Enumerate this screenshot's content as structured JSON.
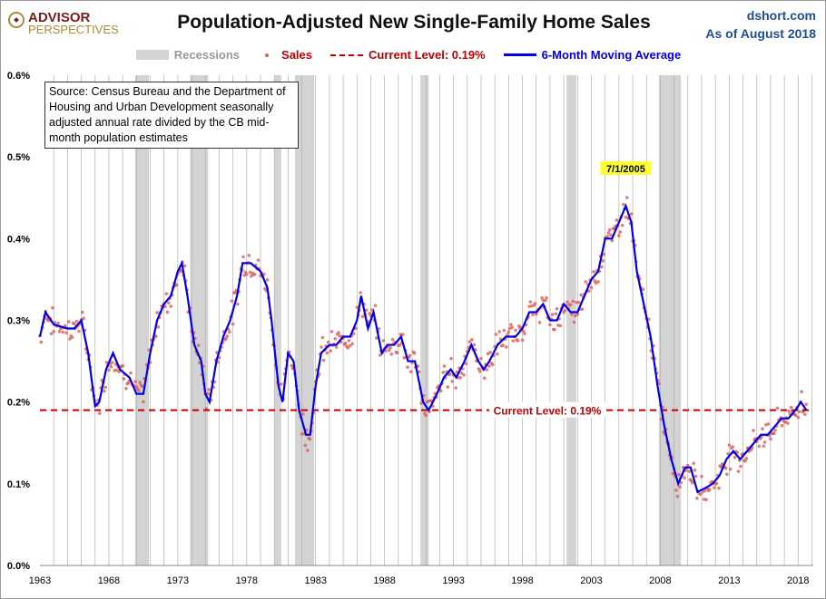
{
  "header": {
    "logo_line1": "ADVISOR",
    "logo_line2": "PERSPECTIVES",
    "site": "dshort.com",
    "as_of": "As of August 2018"
  },
  "chart_data": {
    "type": "scatter",
    "title": "Population-Adjusted New Single-Family Home Sales",
    "source_note": "Source: Census Bureau and the Department of Housing and Urban Development seasonally adjusted annual rate divided by the CB mid-month population estimates",
    "legend": {
      "recessions": "Recessions",
      "sales": "Sales",
      "current": "Current Level: 0.19%",
      "ma": "6-Month Moving Average"
    },
    "legend_placement": "top-center",
    "xlim": [
      1963,
      2019.1
    ],
    "ylim": [
      0,
      0.6
    ],
    "x_ticks": [
      1963,
      1968,
      1973,
      1978,
      1983,
      1988,
      1993,
      1998,
      2003,
      2008,
      2013,
      2018
    ],
    "x_tick_labels": [
      "1963",
      "1968",
      "1973",
      "1978",
      "1983",
      "1988",
      "1993",
      "1998",
      "2003",
      "2008",
      "2013",
      "2018"
    ],
    "y_ticks": [
      0,
      0.1,
      0.2,
      0.3,
      0.4,
      0.5,
      0.6
    ],
    "y_tick_labels": [
      "0.0%",
      "0.1%",
      "0.2%",
      "0.3%",
      "0.4%",
      "0.5%",
      "0.6%"
    ],
    "grid": "vertical yearly",
    "current_level": 0.19,
    "current_label": "Current Level: 0.19%",
    "peak_annotation": {
      "label": "7/1/2005",
      "x": 2005.5,
      "y": 0.44
    },
    "recessions": [
      [
        1969.9,
        1970.9
      ],
      [
        1973.9,
        1975.2
      ],
      [
        1980.0,
        1980.5
      ],
      [
        1981.5,
        1982.9
      ],
      [
        1990.6,
        1991.2
      ],
      [
        2001.2,
        2001.9
      ],
      [
        2007.9,
        2009.5
      ]
    ],
    "moving_average": [
      [
        1963.0,
        0.28
      ],
      [
        1963.4,
        0.31
      ],
      [
        1964.0,
        0.295
      ],
      [
        1965.0,
        0.29
      ],
      [
        1965.5,
        0.29
      ],
      [
        1966.0,
        0.3
      ],
      [
        1966.5,
        0.26
      ],
      [
        1967.0,
        0.195
      ],
      [
        1967.3,
        0.2
      ],
      [
        1967.8,
        0.24
      ],
      [
        1968.3,
        0.26
      ],
      [
        1968.8,
        0.24
      ],
      [
        1969.5,
        0.23
      ],
      [
        1970.0,
        0.21
      ],
      [
        1970.5,
        0.21
      ],
      [
        1971.0,
        0.26
      ],
      [
        1971.5,
        0.3
      ],
      [
        1972.0,
        0.32
      ],
      [
        1972.5,
        0.33
      ],
      [
        1973.0,
        0.36
      ],
      [
        1973.3,
        0.37
      ],
      [
        1973.7,
        0.33
      ],
      [
        1974.2,
        0.27
      ],
      [
        1974.7,
        0.25
      ],
      [
        1975.0,
        0.21
      ],
      [
        1975.3,
        0.2
      ],
      [
        1975.8,
        0.25
      ],
      [
        1976.3,
        0.28
      ],
      [
        1976.8,
        0.3
      ],
      [
        1977.3,
        0.33
      ],
      [
        1977.7,
        0.37
      ],
      [
        1978.3,
        0.37
      ],
      [
        1979.0,
        0.36
      ],
      [
        1979.5,
        0.34
      ],
      [
        1979.8,
        0.3
      ],
      [
        1980.3,
        0.22
      ],
      [
        1980.6,
        0.2
      ],
      [
        1981.0,
        0.26
      ],
      [
        1981.4,
        0.25
      ],
      [
        1981.8,
        0.19
      ],
      [
        1982.3,
        0.16
      ],
      [
        1982.6,
        0.16
      ],
      [
        1983.0,
        0.22
      ],
      [
        1983.4,
        0.26
      ],
      [
        1984.0,
        0.27
      ],
      [
        1984.5,
        0.27
      ],
      [
        1985.0,
        0.28
      ],
      [
        1985.5,
        0.28
      ],
      [
        1986.0,
        0.3
      ],
      [
        1986.3,
        0.33
      ],
      [
        1986.8,
        0.29
      ],
      [
        1987.2,
        0.31
      ],
      [
        1987.8,
        0.26
      ],
      [
        1988.2,
        0.27
      ],
      [
        1988.7,
        0.27
      ],
      [
        1989.2,
        0.28
      ],
      [
        1989.7,
        0.25
      ],
      [
        1990.2,
        0.25
      ],
      [
        1990.8,
        0.2
      ],
      [
        1991.2,
        0.19
      ],
      [
        1991.8,
        0.21
      ],
      [
        1992.3,
        0.23
      ],
      [
        1992.8,
        0.24
      ],
      [
        1993.2,
        0.23
      ],
      [
        1993.8,
        0.25
      ],
      [
        1994.3,
        0.27
      ],
      [
        1994.8,
        0.25
      ],
      [
        1995.2,
        0.24
      ],
      [
        1995.6,
        0.25
      ],
      [
        1996.2,
        0.27
      ],
      [
        1996.8,
        0.28
      ],
      [
        1997.5,
        0.28
      ],
      [
        1998.0,
        0.29
      ],
      [
        1998.5,
        0.31
      ],
      [
        1999.0,
        0.31
      ],
      [
        1999.5,
        0.32
      ],
      [
        2000.0,
        0.3
      ],
      [
        2000.5,
        0.3
      ],
      [
        2001.0,
        0.32
      ],
      [
        2001.5,
        0.31
      ],
      [
        2002.0,
        0.31
      ],
      [
        2002.5,
        0.33
      ],
      [
        2003.0,
        0.35
      ],
      [
        2003.5,
        0.36
      ],
      [
        2004.0,
        0.4
      ],
      [
        2004.5,
        0.4
      ],
      [
        2005.0,
        0.42
      ],
      [
        2005.5,
        0.44
      ],
      [
        2005.9,
        0.42
      ],
      [
        2006.3,
        0.36
      ],
      [
        2006.8,
        0.32
      ],
      [
        2007.3,
        0.28
      ],
      [
        2007.8,
        0.22
      ],
      [
        2008.3,
        0.17
      ],
      [
        2008.8,
        0.13
      ],
      [
        2009.3,
        0.1
      ],
      [
        2009.8,
        0.12
      ],
      [
        2010.2,
        0.12
      ],
      [
        2010.7,
        0.09
      ],
      [
        2011.3,
        0.095
      ],
      [
        2011.8,
        0.1
      ],
      [
        2012.3,
        0.11
      ],
      [
        2012.8,
        0.13
      ],
      [
        2013.3,
        0.14
      ],
      [
        2013.8,
        0.13
      ],
      [
        2014.3,
        0.14
      ],
      [
        2014.8,
        0.15
      ],
      [
        2015.3,
        0.16
      ],
      [
        2015.8,
        0.16
      ],
      [
        2016.3,
        0.17
      ],
      [
        2016.8,
        0.18
      ],
      [
        2017.3,
        0.18
      ],
      [
        2017.8,
        0.19
      ],
      [
        2018.2,
        0.2
      ],
      [
        2018.6,
        0.19
      ]
    ],
    "sales_note_noise": 0.02,
    "colors": {
      "sales": "#d9605a",
      "ma": "#0000ee",
      "current": "#c00000",
      "recession": "#d3d3d3",
      "grid": "#b0b0b0",
      "annotation_bg": "#ffff33"
    }
  }
}
